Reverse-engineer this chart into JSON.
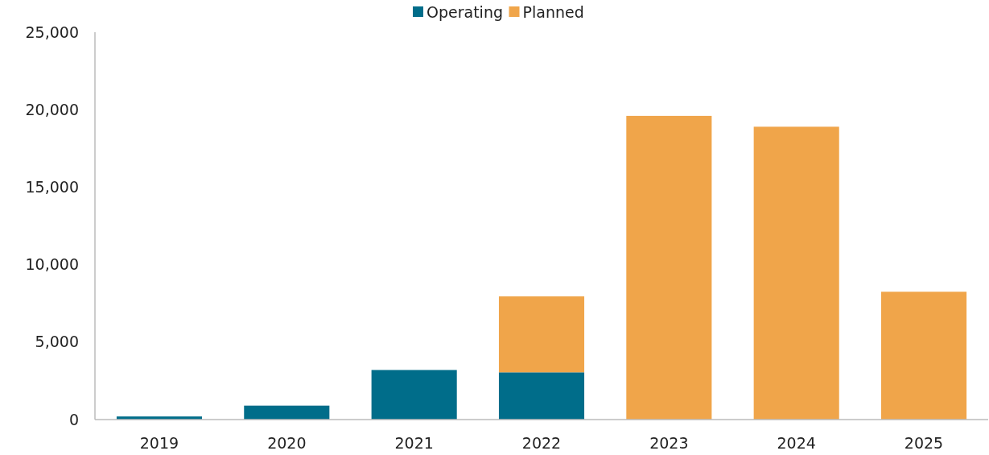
{
  "chart_data": {
    "type": "bar",
    "stacked": true,
    "categories": [
      "2019",
      "2020",
      "2021",
      "2022",
      "2023",
      "2024",
      "2025"
    ],
    "series": [
      {
        "name": "Operating",
        "color": "#006d8a",
        "values": [
          200,
          900,
          3200,
          3050,
          null,
          null,
          null
        ]
      },
      {
        "name": "Planned",
        "color": "#f0a54a",
        "values": [
          null,
          null,
          null,
          4900,
          19600,
          18900,
          8250
        ]
      }
    ],
    "ylim": [
      0,
      25000
    ],
    "yticks": [
      {
        "value": 0,
        "label": "0"
      },
      {
        "value": 5000,
        "label": "5,000"
      },
      {
        "value": 10000,
        "label": "10,000"
      },
      {
        "value": 15000,
        "label": "15,000"
      },
      {
        "value": 20000,
        "label": "20,000"
      },
      {
        "value": 25000,
        "label": "25,000"
      }
    ],
    "legend": "top",
    "grid": false
  }
}
